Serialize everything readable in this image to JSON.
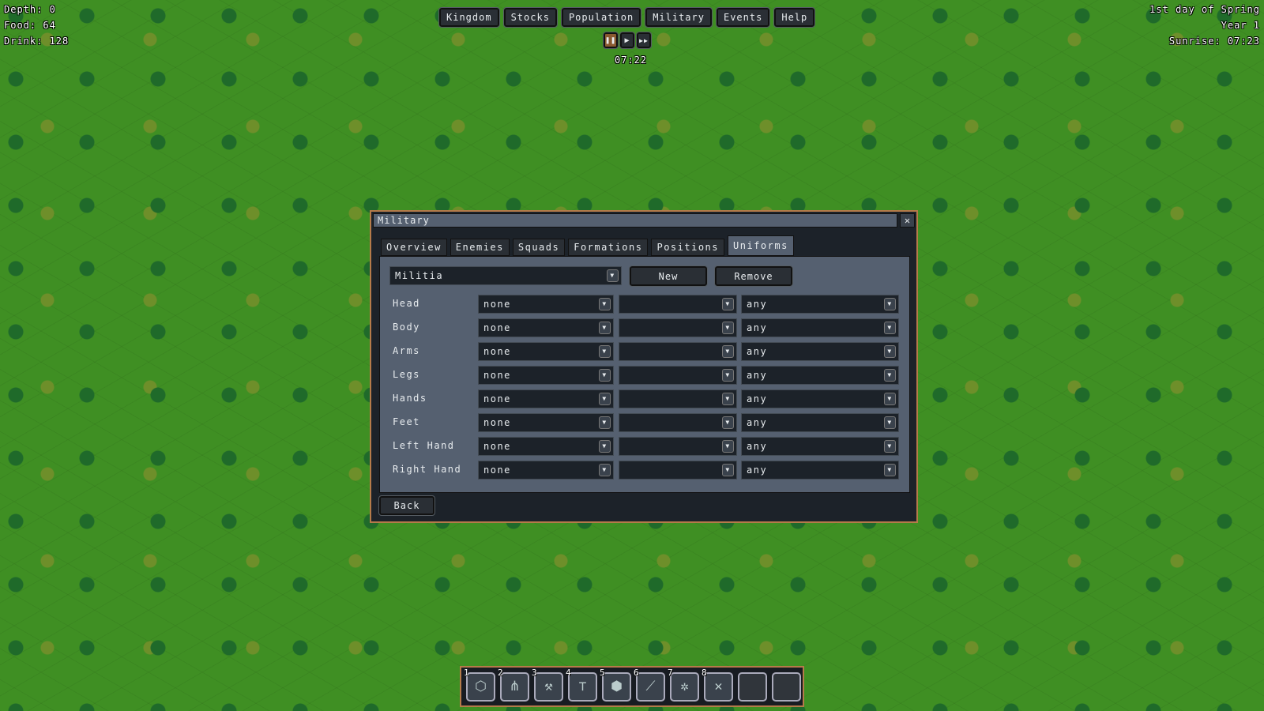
{
  "hud": {
    "depth": "Depth: 0",
    "food": "Food: 64",
    "drink": "Drink: 128",
    "day": "1st day of Spring",
    "year": "Year 1",
    "sunrise": "Sunrise: 07:23",
    "clock": "07:22"
  },
  "menu": [
    {
      "label": "Kingdom"
    },
    {
      "label": "Stocks"
    },
    {
      "label": "Population"
    },
    {
      "label": "Military"
    },
    {
      "label": "Events"
    },
    {
      "label": "Help"
    }
  ],
  "speed": {
    "pause": "❚❚",
    "play": "▶",
    "fast": "▶▶"
  },
  "dialog": {
    "title": "Military",
    "close": "✕",
    "tabs": [
      {
        "label": "Overview"
      },
      {
        "label": "Enemies"
      },
      {
        "label": "Squads"
      },
      {
        "label": "Formations"
      },
      {
        "label": "Positions"
      },
      {
        "label": "Uniforms"
      }
    ],
    "active_tab": "Uniforms",
    "uniform_select": "Militia",
    "new_label": "New",
    "remove_label": "Remove",
    "rows": [
      {
        "slot": "Head",
        "item": "none",
        "material": "",
        "quality": "any"
      },
      {
        "slot": "Body",
        "item": "none",
        "material": "",
        "quality": "any"
      },
      {
        "slot": "Arms",
        "item": "none",
        "material": "",
        "quality": "any"
      },
      {
        "slot": "Legs",
        "item": "none",
        "material": "",
        "quality": "any"
      },
      {
        "slot": "Hands",
        "item": "none",
        "material": "",
        "quality": "any"
      },
      {
        "slot": "Feet",
        "item": "none",
        "material": "",
        "quality": "any"
      },
      {
        "slot": "Left Hand",
        "item": "none",
        "material": "",
        "quality": "any"
      },
      {
        "slot": "Right Hand",
        "item": "none",
        "material": "",
        "quality": "any"
      }
    ],
    "back_label": "Back"
  },
  "toolbar": [
    {
      "num": "1",
      "icon": "blocks-icon",
      "glyph": "⬡"
    },
    {
      "num": "2",
      "icon": "wheat-icon",
      "glyph": "⋔"
    },
    {
      "num": "3",
      "icon": "hammer-icon",
      "glyph": "⚒"
    },
    {
      "num": "4",
      "icon": "sign-icon",
      "glyph": "⊤"
    },
    {
      "num": "5",
      "icon": "stockpile-icon",
      "glyph": "⬢"
    },
    {
      "num": "6",
      "icon": "pickaxe-icon",
      "glyph": "⟋"
    },
    {
      "num": "7",
      "icon": "cancel-bug-icon",
      "glyph": "✲"
    },
    {
      "num": "8",
      "icon": "cross-icon",
      "glyph": "✕"
    },
    {
      "num": "",
      "icon": "empty-slot",
      "glyph": ""
    },
    {
      "num": "",
      "icon": "empty-slot",
      "glyph": ""
    }
  ]
}
